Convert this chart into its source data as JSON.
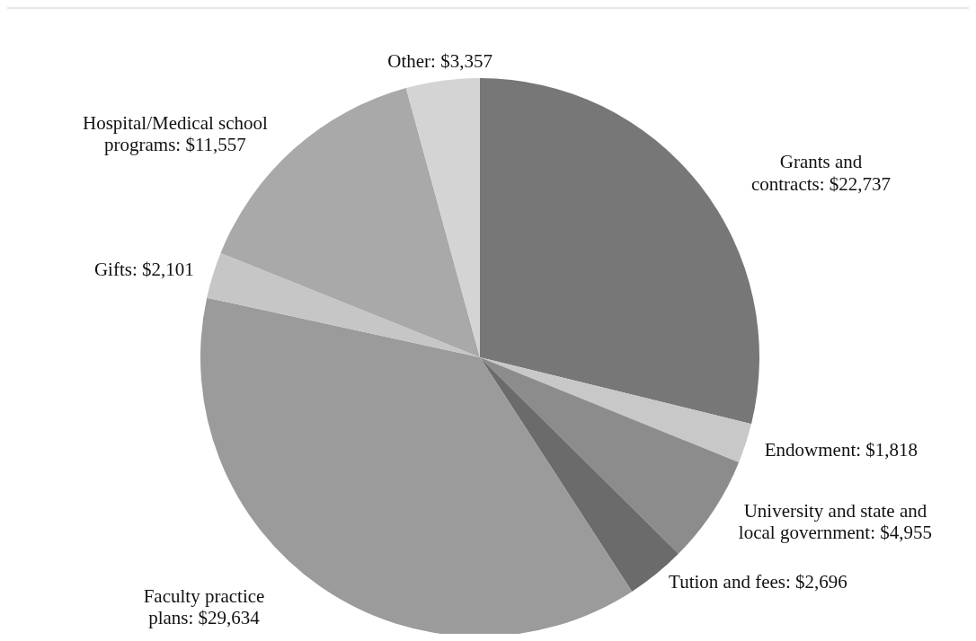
{
  "chart_data": {
    "type": "pie",
    "categories": [
      "Grants and contracts",
      "Endowment",
      "University and state and local government",
      "Tution and fees",
      "Faculty practice plans",
      "Gifts",
      "Hospital/Medical school programs",
      "Other"
    ],
    "values": [
      22737,
      1818,
      4955,
      2696,
      29634,
      2101,
      11557,
      3357
    ],
    "value_labels": [
      "$22,737",
      "$1,818",
      "$4,955",
      "$2,696",
      "$29,634",
      "$2,101",
      "$11,557",
      "$3,357"
    ],
    "colors": [
      "#767776",
      "#c8c8c8",
      "#8c8c8c",
      "#6a6b6a",
      "#9a9b9a",
      "#c5c6c5",
      "#a8a9a8",
      "#d4d4d4"
    ]
  }
}
